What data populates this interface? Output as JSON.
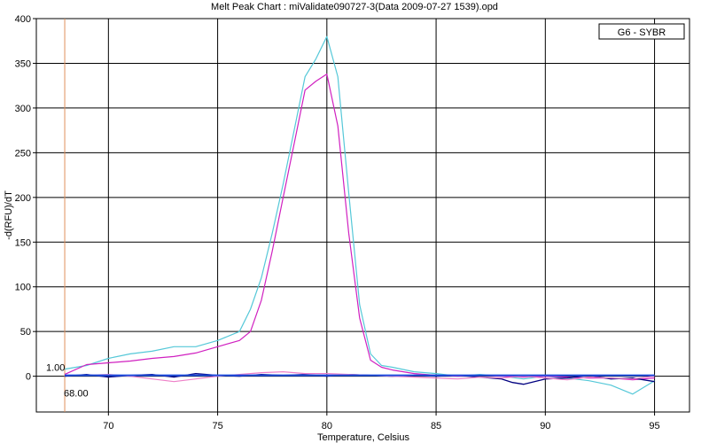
{
  "chart_data": {
    "type": "line",
    "title": "Melt Peak Chart : miValidate090727-3(Data 2009-07-27 1539).opd",
    "xlabel": "Temperature, Celsius",
    "ylabel": "-d(RFU)/dT",
    "xlim": [
      66.7,
      96.6
    ],
    "ylim": [
      -40,
      400
    ],
    "xticks": [
      70,
      75,
      80,
      85,
      90,
      95
    ],
    "yticks": [
      0,
      50,
      100,
      150,
      200,
      250,
      300,
      350,
      400
    ],
    "grid": true,
    "legend": {
      "position": "top-right",
      "label": "G6 - SYBR"
    },
    "marker": {
      "x": 68.0,
      "x_label": "68.00",
      "threshold": 1.0,
      "threshold_label": "1.00",
      "color": "#e0905a"
    },
    "series": [
      {
        "color": "#55c8d8",
        "x": [
          68,
          69,
          70,
          71,
          72,
          73,
          74,
          75,
          76,
          76.5,
          77,
          77.5,
          78,
          78.5,
          79,
          79.5,
          80,
          80.5,
          81,
          81.5,
          82,
          82.5,
          83,
          84,
          85,
          86,
          87,
          88,
          89,
          90,
          91,
          92,
          93,
          94,
          95
        ],
        "y": [
          8,
          12,
          20,
          25,
          28,
          33,
          33,
          40,
          50,
          75,
          110,
          160,
          215,
          275,
          335,
          355,
          380,
          335,
          205,
          80,
          25,
          12,
          10,
          5,
          3,
          0,
          2,
          0,
          -3,
          0,
          -2,
          -5,
          -10,
          -20,
          -5
        ]
      },
      {
        "color": "#d020c0",
        "x": [
          68,
          69,
          70,
          71,
          72,
          73,
          74,
          75,
          76,
          76.5,
          77,
          77.5,
          78,
          78.5,
          79,
          79.5,
          80,
          80.5,
          81,
          81.5,
          82,
          82.5,
          83,
          84,
          85,
          86,
          87,
          88,
          89,
          90,
          91,
          92,
          93,
          94,
          95
        ],
        "y": [
          2,
          13,
          15,
          17,
          20,
          22,
          26,
          33,
          40,
          50,
          85,
          140,
          200,
          260,
          320,
          330,
          338,
          280,
          160,
          65,
          18,
          10,
          7,
          3,
          1,
          0,
          1,
          0,
          -1,
          0,
          -1,
          -2,
          -2,
          -4,
          -2
        ]
      },
      {
        "color": "#000080",
        "x": [
          68,
          69,
          70,
          71,
          72,
          73,
          74,
          75,
          76,
          77,
          78,
          79,
          80,
          81,
          82,
          83,
          84,
          85,
          86,
          87,
          88,
          88.5,
          89,
          90,
          91,
          92,
          93,
          94,
          95
        ],
        "y": [
          0,
          2,
          -1,
          1,
          2,
          -1,
          3,
          1,
          0,
          2,
          1,
          2,
          0,
          2,
          1,
          0,
          1,
          0,
          1,
          -1,
          -3,
          -7,
          -9,
          -3,
          -2,
          1,
          -3,
          -2,
          -6
        ]
      },
      {
        "color": "#ee80c8",
        "x": [
          68,
          69,
          70,
          71,
          72,
          73,
          74,
          75,
          76,
          77,
          78,
          79,
          80,
          81,
          82,
          83,
          84,
          85,
          86,
          87,
          88,
          89,
          90,
          91,
          92,
          93,
          94,
          95
        ],
        "y": [
          1,
          1,
          2,
          0,
          -3,
          -6,
          -3,
          0,
          2,
          4,
          5,
          3,
          3,
          2,
          1,
          0,
          -1,
          -2,
          -3,
          -1,
          -2,
          0,
          -2,
          -4,
          -1,
          -2,
          -3,
          0
        ]
      },
      {
        "color": "#2050e0",
        "x": [
          68,
          95
        ],
        "y": [
          1,
          1
        ]
      }
    ]
  }
}
